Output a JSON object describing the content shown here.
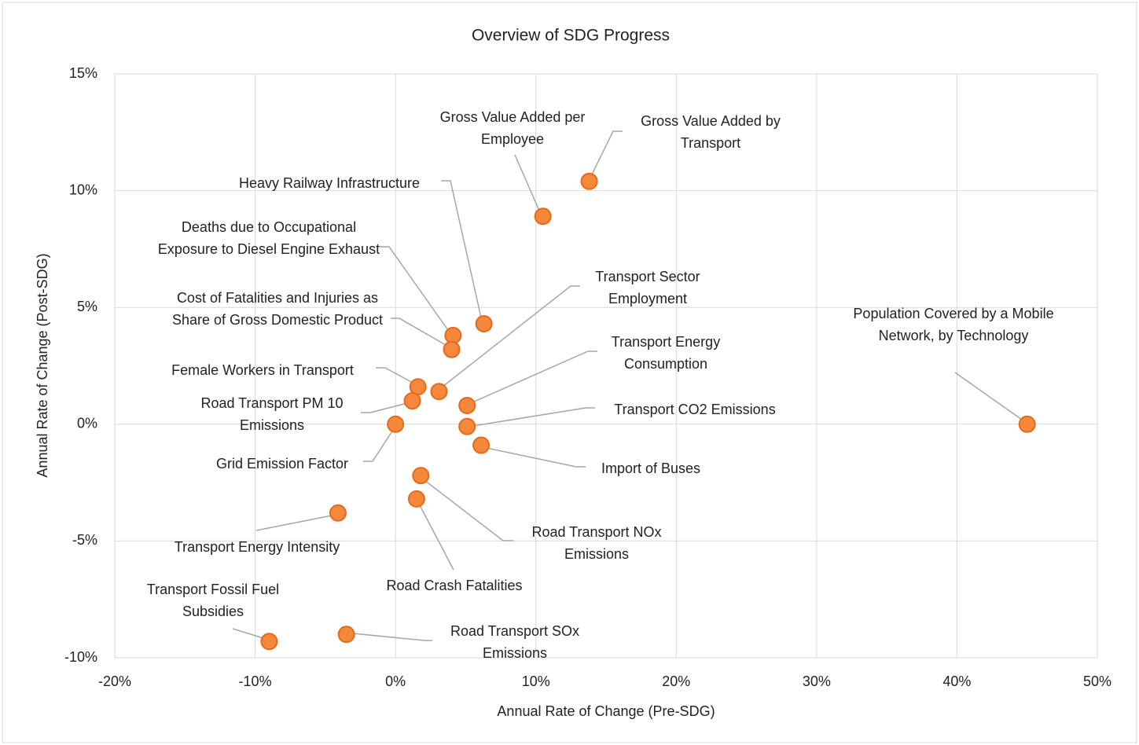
{
  "chart_data": {
    "type": "scatter",
    "title": "Overview of SDG Progress",
    "xlabel": "Annual Rate of Change (Pre-SDG)",
    "ylabel": "Annual Rate of Change (Post-SDG)",
    "labels": [
      "Gross Value Added by Transport",
      "Gross Value Added per Employee",
      "Heavy Railway Infrastructure",
      "Deaths due to Occupational Exposure to Diesel Engine Exhaust",
      "Cost of Fatalities and Injuries as Share of Gross Domestic Product",
      "Transport Sector Employment",
      "Female Workers in Transport",
      "Road Transport PM 10 Emissions",
      "Transport Energy Consumption",
      "Transport CO2 Emissions",
      "Grid Emission Factor",
      "Import of Buses",
      "Road Transport NOx Emissions",
      "Road Crash Fatalities",
      "Transport Energy Intensity",
      "Transport Fossil Fuel Subsidies",
      "Road Transport SOx Emissions",
      "Population Covered by a Mobile Network, by Technology"
    ],
    "x": [
      13.8,
      10.5,
      6.3,
      4.1,
      4.0,
      3.1,
      1.6,
      1.2,
      5.1,
      5.1,
      0,
      6.1,
      1.8,
      1.5,
      -4.1,
      -9.0,
      -3.5,
      45.0
    ],
    "values": [
      10.4,
      8.9,
      4.3,
      3.8,
      3.2,
      1.4,
      1.6,
      1.0,
      0.8,
      -0.1,
      0,
      -0.9,
      -2.2,
      -3.2,
      -3.8,
      -9.3,
      -9.0,
      0
    ],
    "color": "#f5883a",
    "xlim": [
      -20,
      50
    ],
    "ylim": [
      -10,
      15
    ],
    "xticks": [
      {
        "value": -20,
        "label": "-20%"
      },
      {
        "value": -10,
        "label": "-10%"
      },
      {
        "value": 0,
        "label": "0%"
      },
      {
        "value": 10,
        "label": "10%"
      },
      {
        "value": 20,
        "label": "20%"
      },
      {
        "value": 30,
        "label": "30%"
      },
      {
        "value": 40,
        "label": "40%"
      },
      {
        "value": 50,
        "label": "50%"
      }
    ],
    "yticks": [
      {
        "value": -10,
        "label": "-10%"
      },
      {
        "value": -5,
        "label": "-5%"
      },
      {
        "value": 0,
        "label": "0%"
      },
      {
        "value": 5,
        "label": "5%"
      },
      {
        "value": 10,
        "label": "10%"
      },
      {
        "value": 15,
        "label": "15%"
      }
    ],
    "grid": true
  }
}
